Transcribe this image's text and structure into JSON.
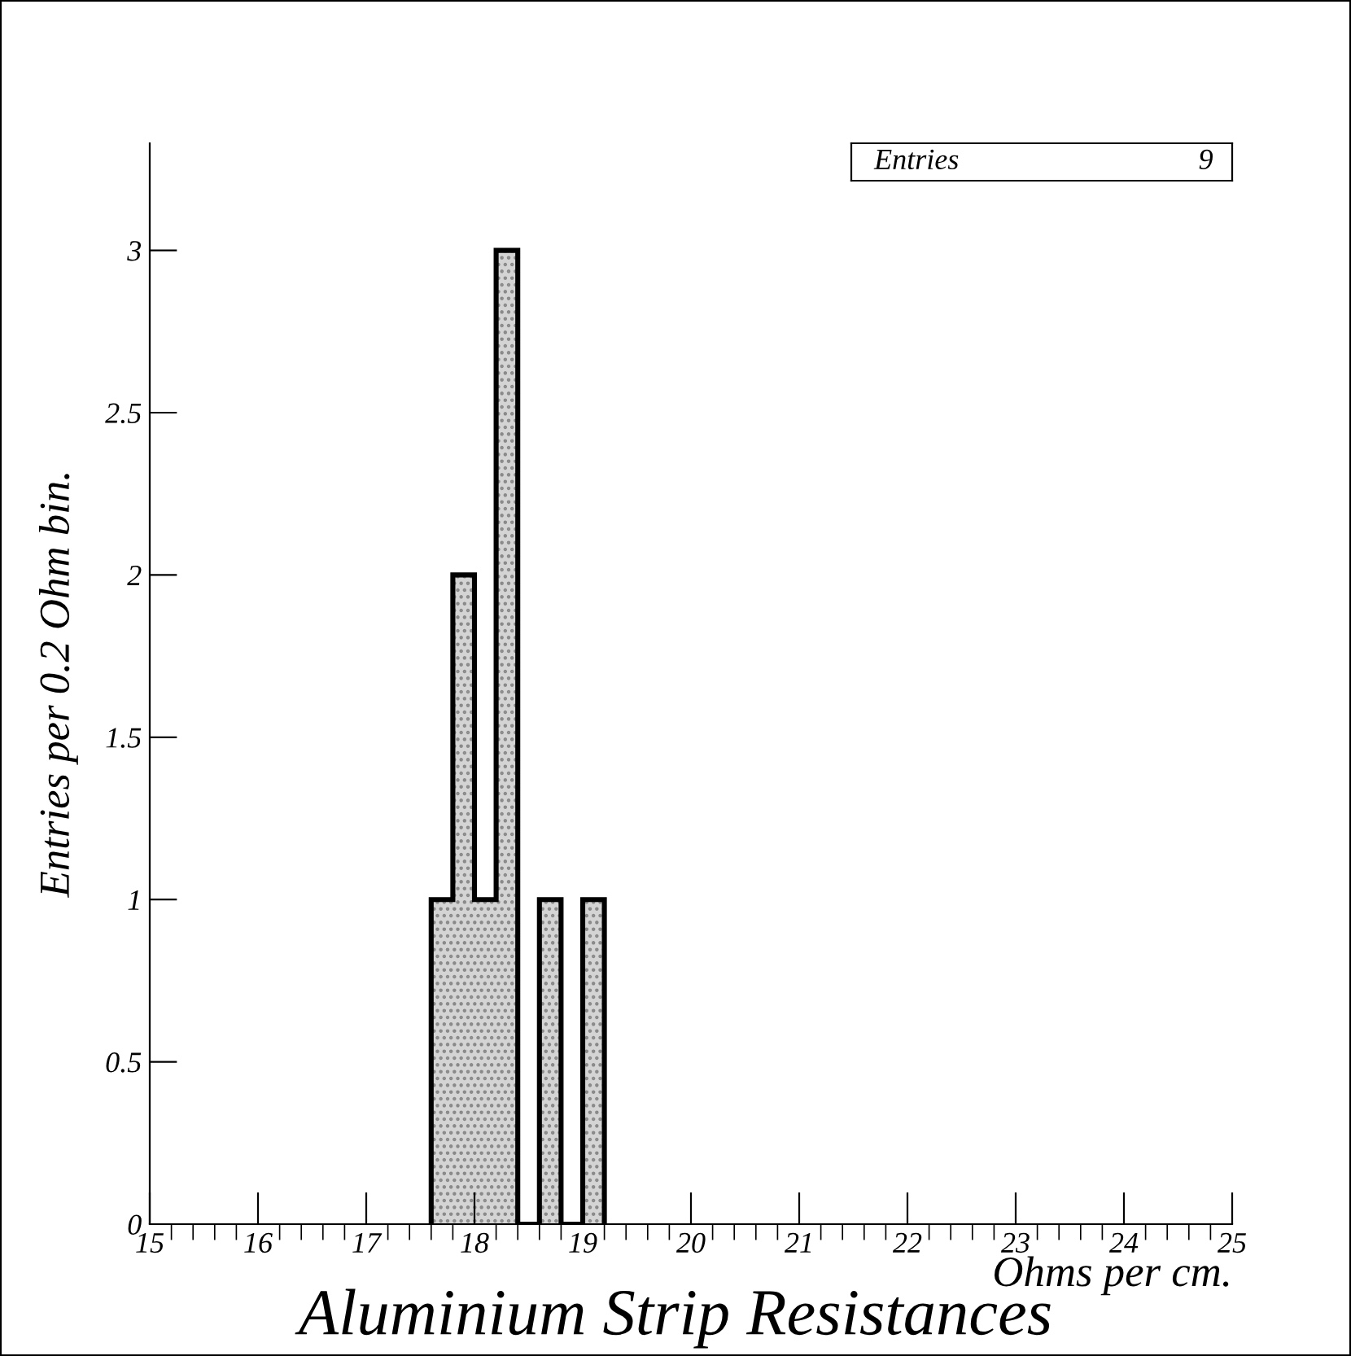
{
  "chart_data": {
    "type": "histogram",
    "title": "Aluminium Strip Resistances",
    "xlabel": "Ohms per cm.",
    "ylabel": "Entries per 0.2 Ohm bin.",
    "bins": [
      17.6,
      17.8,
      18.0,
      18.2,
      18.4,
      18.6,
      18.8,
      19.0,
      19.2
    ],
    "values": [
      1,
      2,
      1,
      3,
      0,
      1,
      0,
      1
    ],
    "color": "#d4d4d4",
    "xlim": [
      15,
      25
    ],
    "xticks": [
      15,
      16,
      17,
      18,
      19,
      20,
      21,
      22,
      23,
      24,
      25
    ],
    "ylim": [
      0,
      3.33
    ],
    "yticks": [
      0,
      0.5,
      1,
      1.5,
      2,
      2.5,
      3
    ],
    "annotations": [
      "Entries",
      "9"
    ],
    "grid": false,
    "legend": false
  }
}
